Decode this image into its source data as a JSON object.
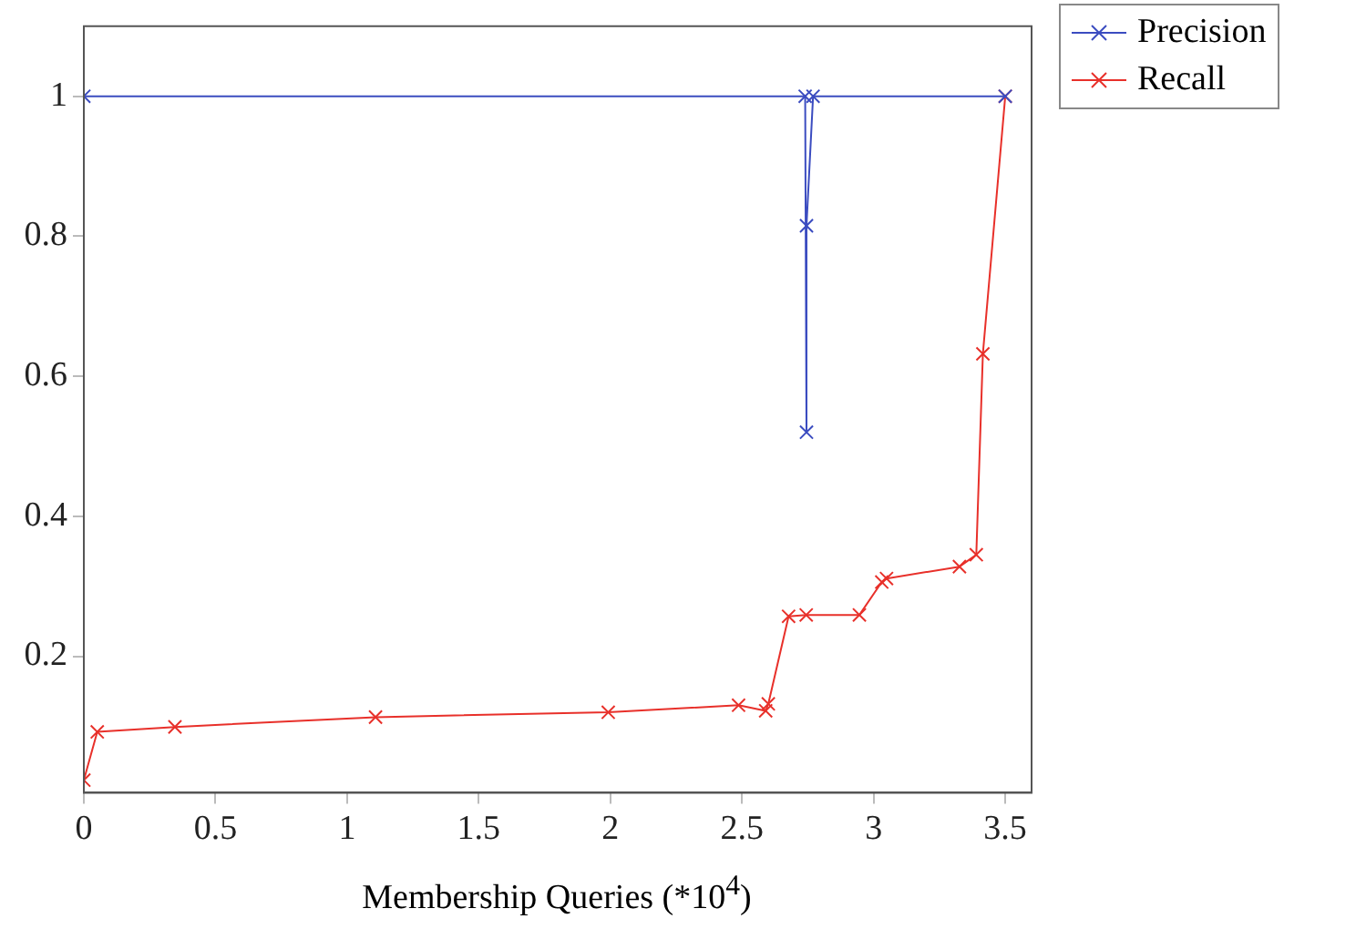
{
  "chart_data": {
    "type": "line",
    "xlabel": "Membership Queries (*10$^{4}$)",
    "xlim": [
      0,
      3.6
    ],
    "xticks": [
      0,
      0.5,
      1,
      1.5,
      2,
      2.5,
      3,
      3.5
    ],
    "ylim": [
      0.005,
      1.1
    ],
    "yticks": [
      0.2,
      0.4,
      0.6,
      0.8,
      1
    ],
    "grid": false,
    "legend": "top right",
    "marker": "cross",
    "line_style": "solid",
    "series": [
      {
        "name": "Precision",
        "color": "#3b4cc0",
        "x": [
          0,
          2.74,
          2.745,
          2.745,
          2.77,
          3.5
        ],
        "values": [
          1,
          1,
          0.52,
          0.815,
          1,
          1
        ]
      },
      {
        "name": "Recall",
        "color": "#e8302a",
        "x": [
          0,
          0.051,
          0.346,
          1.108,
          1.992,
          2.487,
          2.59,
          2.6,
          2.677,
          2.744,
          2.946,
          3.031,
          3.049,
          3.326,
          3.39,
          3.415,
          3.5
        ],
        "values": [
          0.023,
          0.092,
          0.099,
          0.113,
          0.12,
          0.13,
          0.122,
          0.132,
          0.257,
          0.259,
          0.259,
          0.306,
          0.311,
          0.328,
          0.345,
          0.632,
          1
        ]
      }
    ]
  }
}
